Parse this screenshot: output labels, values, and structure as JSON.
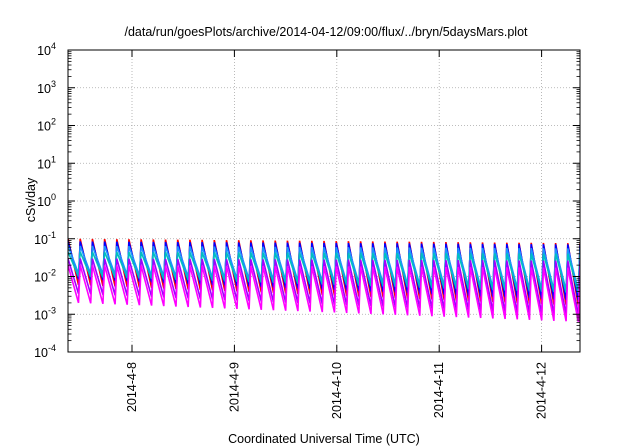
{
  "chart_data": {
    "type": "line",
    "title": "/data/run/goesPlots/archive/2014-04-12/09:00/flux/../bryn/5daysMars.plot",
    "xlabel": "Coordinated Universal Time (UTC)",
    "ylabel": "cSv/day",
    "yscale": "log",
    "ylim": [
      0.0001,
      10000
    ],
    "y_ticks": [
      {
        "value": 0.0001,
        "base": "10",
        "exp": "-4"
      },
      {
        "value": 0.001,
        "base": "10",
        "exp": "-3"
      },
      {
        "value": 0.01,
        "base": "10",
        "exp": "-2"
      },
      {
        "value": 0.1,
        "base": "10",
        "exp": "-1"
      },
      {
        "value": 1,
        "base": "10",
        "exp": "0"
      },
      {
        "value": 10,
        "base": "10",
        "exp": "1"
      },
      {
        "value": 100,
        "base": "10",
        "exp": "2"
      },
      {
        "value": 1000,
        "base": "10",
        "exp": "3"
      },
      {
        "value": 10000,
        "base": "10",
        "exp": "4"
      }
    ],
    "xlim": [
      "2014-04-07T09:00",
      "2014-04-12T09:00"
    ],
    "x_ticks": [
      {
        "value": "2014-04-08T00:00",
        "label": "2014-4-8"
      },
      {
        "value": "2014-04-09T00:00",
        "label": "2014-4-9"
      },
      {
        "value": "2014-04-10T00:00",
        "label": "2014-4-10"
      },
      {
        "value": "2014-04-11T00:00",
        "label": "2014-4-11"
      },
      {
        "value": "2014-04-12T00:00",
        "label": "2014-4-12"
      }
    ],
    "grid": true,
    "sawtooth_period_hours": 2.857,
    "series": [
      {
        "color": "#ff0000",
        "peak_start": 0.1,
        "peak_end": 0.075,
        "trough_start": 0.006,
        "trough_end": 0.0016
      },
      {
        "color": "#0000ff",
        "peak_start": 0.085,
        "peak_end": 0.07,
        "trough_start": 0.0085,
        "trough_end": 0.0022
      },
      {
        "color": "#1e90ff",
        "peak_start": 0.065,
        "peak_end": 0.055,
        "trough_start": 0.012,
        "trough_end": 0.004
      },
      {
        "color": "#00c0c0",
        "peak_start": 0.045,
        "peak_end": 0.04,
        "trough_start": 0.01,
        "trough_end": 0.0035
      },
      {
        "color": "#a000ff",
        "peak_start": 0.03,
        "peak_end": 0.026,
        "trough_start": 0.0035,
        "trough_end": 0.0009
      },
      {
        "color": "#ff00ff",
        "peak_start": 0.02,
        "peak_end": 0.017,
        "trough_start": 0.002,
        "trough_end": 0.0006
      }
    ]
  }
}
